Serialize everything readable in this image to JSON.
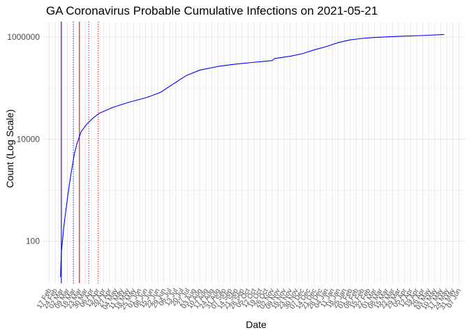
{
  "chart_data": {
    "type": "line",
    "title": "GA Coronavirus Probable Cumulative Infections on 2021-05-21",
    "xlabel": "Date",
    "ylabel": "Count (Log Scale)",
    "y_scale": "log10",
    "ylim": [
      15,
      2000000
    ],
    "xlim": [
      "2020-02-10",
      "2021-06-14"
    ],
    "grid": true,
    "y_ticks": [
      {
        "value": 100,
        "label": "100"
      },
      {
        "value": 10000,
        "label": "10000"
      },
      {
        "value": 1000000,
        "label": "1000000"
      }
    ],
    "x_tick_labels": [
      "17 Feb",
      "24 Feb",
      "02 Mar",
      "09 Mar",
      "16 Mar",
      "23 Mar",
      "30 Mar",
      "06 Apr",
      "13 Apr",
      "20 Apr",
      "27 Apr",
      "04 May",
      "11 May",
      "18 May",
      "25 May",
      "01 Jun",
      "08 Jun",
      "15 Jun",
      "22 Jun",
      "29 Jun",
      "06 Jul",
      "13 Jul",
      "20 Jul",
      "27 Jul",
      "03 Aug",
      "10 Aug",
      "17 Aug",
      "24 Aug",
      "31 Aug",
      "07 Sep",
      "14 Sep",
      "21 Sep",
      "28 Sep",
      "05 Oct",
      "12 Oct",
      "19 Oct",
      "26 Oct",
      "02 Nov",
      "09 Nov",
      "16 Nov",
      "23 Nov",
      "30 Nov",
      "07 Dec",
      "14 Dec",
      "21 Dec",
      "28 Dec",
      "04 Jan",
      "11 Jan",
      "18 Jan",
      "25 Jan",
      "01 Feb",
      "08 Feb",
      "15 Feb",
      "22 Feb",
      "01 Mar",
      "08 Mar",
      "15 Mar",
      "22 Mar",
      "29 Mar",
      "05 Apr",
      "12 Apr",
      "19 Apr",
      "26 Apr",
      "03 May",
      "10 May",
      "17 May",
      "24 May",
      "31 May",
      "07 Jun"
    ],
    "x_tick_dates": [
      "2020-02-17",
      "2020-02-24",
      "2020-03-02",
      "2020-03-09",
      "2020-03-16",
      "2020-03-23",
      "2020-03-30",
      "2020-04-06",
      "2020-04-13",
      "2020-04-20",
      "2020-04-27",
      "2020-05-04",
      "2020-05-11",
      "2020-05-18",
      "2020-05-25",
      "2020-06-01",
      "2020-06-08",
      "2020-06-15",
      "2020-06-22",
      "2020-06-29",
      "2020-07-06",
      "2020-07-13",
      "2020-07-20",
      "2020-07-27",
      "2020-08-03",
      "2020-08-10",
      "2020-08-17",
      "2020-08-24",
      "2020-08-31",
      "2020-09-07",
      "2020-09-14",
      "2020-09-21",
      "2020-09-28",
      "2020-10-05",
      "2020-10-12",
      "2020-10-19",
      "2020-10-26",
      "2020-11-02",
      "2020-11-09",
      "2020-11-16",
      "2020-11-23",
      "2020-11-30",
      "2020-12-07",
      "2020-12-14",
      "2020-12-21",
      "2020-12-28",
      "2021-01-04",
      "2021-01-11",
      "2021-01-18",
      "2021-01-25",
      "2021-02-01",
      "2021-02-08",
      "2021-02-15",
      "2021-02-22",
      "2021-03-01",
      "2021-03-08",
      "2021-03-15",
      "2021-03-22",
      "2021-03-29",
      "2021-04-05",
      "2021-04-12",
      "2021-04-19",
      "2021-04-26",
      "2021-05-03",
      "2021-05-10",
      "2021-05-17",
      "2021-05-24",
      "2021-05-31",
      "2021-06-07"
    ],
    "reference_lines": [
      {
        "x": "2020-03-02",
        "color": "#0000ff",
        "style": "solid"
      },
      {
        "x": "2020-03-16",
        "color": "#0000ff",
        "style": "dotted"
      },
      {
        "x": "2020-03-23",
        "color": "#ff0000",
        "style": "solid"
      },
      {
        "x": "2020-04-03",
        "color": "#ff0000",
        "style": "dotted"
      },
      {
        "x": "2020-04-14",
        "color": "#ff0000",
        "style": "dotted"
      }
    ],
    "series": [
      {
        "color": "#0000ff",
        "points": [
          {
            "x": "2020-03-01",
            "y": 20
          },
          {
            "x": "2020-03-02",
            "y": 60
          },
          {
            "x": "2020-03-05",
            "y": 200
          },
          {
            "x": "2020-03-08",
            "y": 500
          },
          {
            "x": "2020-03-11",
            "y": 1200
          },
          {
            "x": "2020-03-14",
            "y": 2500
          },
          {
            "x": "2020-03-17",
            "y": 5000
          },
          {
            "x": "2020-03-20",
            "y": 8000
          },
          {
            "x": "2020-03-25",
            "y": 14000
          },
          {
            "x": "2020-04-01",
            "y": 20000
          },
          {
            "x": "2020-04-08",
            "y": 26000
          },
          {
            "x": "2020-04-15",
            "y": 32000
          },
          {
            "x": "2020-05-01",
            "y": 42000
          },
          {
            "x": "2020-05-20",
            "y": 53000
          },
          {
            "x": "2020-06-10",
            "y": 66000
          },
          {
            "x": "2020-06-25",
            "y": 82000
          },
          {
            "x": "2020-07-10",
            "y": 120000
          },
          {
            "x": "2020-07-25",
            "y": 175000
          },
          {
            "x": "2020-08-10",
            "y": 225000
          },
          {
            "x": "2020-08-31",
            "y": 265000
          },
          {
            "x": "2020-09-21",
            "y": 295000
          },
          {
            "x": "2020-10-12",
            "y": 320000
          },
          {
            "x": "2020-11-02",
            "y": 345000
          },
          {
            "x": "2020-11-05",
            "y": 380000
          },
          {
            "x": "2020-11-23",
            "y": 420000
          },
          {
            "x": "2020-12-07",
            "y": 470000
          },
          {
            "x": "2020-12-21",
            "y": 560000
          },
          {
            "x": "2021-01-04",
            "y": 650000
          },
          {
            "x": "2021-01-18",
            "y": 780000
          },
          {
            "x": "2021-02-01",
            "y": 880000
          },
          {
            "x": "2021-02-15",
            "y": 940000
          },
          {
            "x": "2021-03-01",
            "y": 980000
          },
          {
            "x": "2021-03-29",
            "y": 1030000
          },
          {
            "x": "2021-04-26",
            "y": 1070000
          },
          {
            "x": "2021-05-21",
            "y": 1120000
          }
        ]
      }
    ]
  }
}
